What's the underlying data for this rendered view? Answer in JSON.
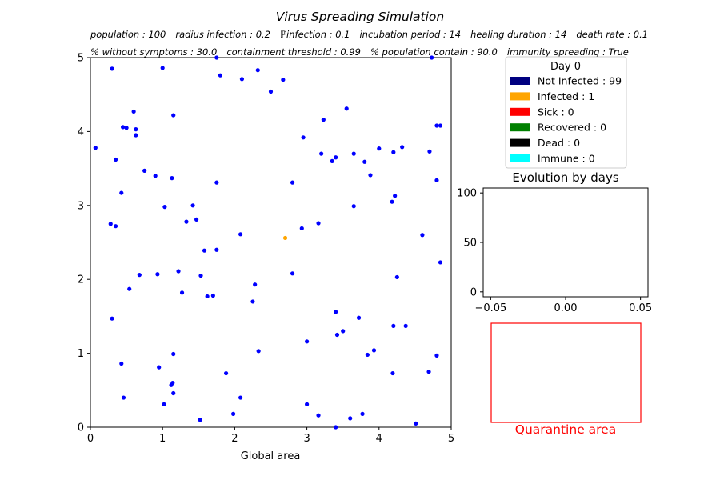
{
  "title": "Virus Spreading Simulation",
  "params_line1": [
    {
      "label": "population",
      "value": "100"
    },
    {
      "label": "radius infection",
      "value": "0.2"
    },
    {
      "label": "ℙinfection",
      "value": "0.1"
    },
    {
      "label": "incubation period",
      "value": "14"
    },
    {
      "label": "healing duration",
      "value": "14"
    },
    {
      "label": "death rate",
      "value": "0.1"
    }
  ],
  "params_line2": [
    {
      "label": "% without symptoms",
      "value": "30.0"
    },
    {
      "label": "containment threshold",
      "value": "0.99"
    },
    {
      "label": "% population contain",
      "value": "90.0"
    },
    {
      "label": "immunity spreading",
      "value": "True"
    }
  ],
  "colors": {
    "not_infected": "#0000ff",
    "infected": "#ffa500",
    "sick": "#ff0000",
    "recovered": "#008000",
    "dead": "#000000",
    "immune": "#00ffff",
    "legend_not_infected": "#000080",
    "quarantine": "#ff0000"
  },
  "chart_data": [
    {
      "type": "scatter",
      "xlabel": "Global area",
      "xlim": [
        0,
        5
      ],
      "ylim": [
        0,
        5
      ],
      "x_ticks": [
        "0",
        "1",
        "2",
        "3",
        "4",
        "5"
      ],
      "y_ticks": [
        "0",
        "1",
        "2",
        "3",
        "4",
        "5"
      ],
      "series": [
        {
          "name": "Not Infected",
          "points": [
            [
              0.3,
              4.85
            ],
            [
              1.0,
              4.86
            ],
            [
              1.75,
              5.0
            ],
            [
              1.8,
              4.76
            ],
            [
              2.1,
              4.71
            ],
            [
              2.32,
              4.83
            ],
            [
              2.5,
              4.54
            ],
            [
              2.67,
              4.7
            ],
            [
              4.73,
              5.0
            ],
            [
              0.07,
              3.78
            ],
            [
              0.35,
              3.62
            ],
            [
              0.6,
              4.27
            ],
            [
              0.45,
              4.06
            ],
            [
              0.5,
              4.05
            ],
            [
              0.63,
              4.03
            ],
            [
              0.63,
              3.95
            ],
            [
              1.15,
              4.22
            ],
            [
              3.55,
              4.31
            ],
            [
              3.23,
              4.16
            ],
            [
              2.95,
              3.92
            ],
            [
              3.2,
              3.7
            ],
            [
              3.4,
              3.65
            ],
            [
              3.35,
              3.6
            ],
            [
              3.65,
              3.7
            ],
            [
              3.8,
              3.59
            ],
            [
              4.0,
              3.77
            ],
            [
              4.2,
              3.72
            ],
            [
              4.32,
              3.79
            ],
            [
              4.7,
              3.73
            ],
            [
              4.8,
              4.08
            ],
            [
              4.85,
              4.08
            ],
            [
              0.75,
              3.47
            ],
            [
              0.9,
              3.4
            ],
            [
              1.13,
              3.37
            ],
            [
              1.75,
              3.31
            ],
            [
              2.8,
              3.31
            ],
            [
              3.88,
              3.41
            ],
            [
              4.8,
              3.34
            ],
            [
              0.43,
              3.17
            ],
            [
              0.28,
              2.75
            ],
            [
              0.35,
              2.72
            ],
            [
              1.03,
              2.98
            ],
            [
              1.42,
              3.0
            ],
            [
              1.47,
              2.81
            ],
            [
              1.33,
              2.78
            ],
            [
              2.08,
              2.61
            ],
            [
              2.93,
              2.69
            ],
            [
              3.16,
              2.76
            ],
            [
              3.65,
              2.99
            ],
            [
              4.18,
              3.05
            ],
            [
              4.22,
              3.13
            ],
            [
              4.6,
              2.6
            ],
            [
              4.85,
              2.23
            ],
            [
              1.58,
              2.39
            ],
            [
              1.75,
              2.4
            ],
            [
              0.68,
              2.06
            ],
            [
              0.93,
              2.07
            ],
            [
              1.22,
              2.11
            ],
            [
              1.53,
              2.05
            ],
            [
              0.54,
              1.87
            ],
            [
              1.27,
              1.82
            ],
            [
              1.62,
              1.77
            ],
            [
              1.7,
              1.78
            ],
            [
              2.28,
              1.93
            ],
            [
              2.25,
              1.7
            ],
            [
              2.8,
              2.08
            ],
            [
              4.25,
              2.03
            ],
            [
              0.3,
              1.47
            ],
            [
              3.4,
              1.56
            ],
            [
              3.72,
              1.48
            ],
            [
              3.5,
              1.3
            ],
            [
              3.42,
              1.25
            ],
            [
              4.2,
              1.37
            ],
            [
              4.37,
              1.37
            ],
            [
              1.15,
              0.99
            ],
            [
              2.33,
              1.03
            ],
            [
              3.0,
              1.16
            ],
            [
              3.84,
              0.98
            ],
            [
              3.93,
              1.04
            ],
            [
              4.8,
              0.97
            ],
            [
              0.43,
              0.86
            ],
            [
              0.95,
              0.81
            ],
            [
              1.88,
              0.73
            ],
            [
              4.19,
              0.73
            ],
            [
              4.69,
              0.75
            ],
            [
              1.12,
              0.57
            ],
            [
              1.14,
              0.6
            ],
            [
              1.15,
              0.46
            ],
            [
              0.46,
              0.4
            ],
            [
              2.08,
              0.4
            ],
            [
              1.02,
              0.31
            ],
            [
              3.0,
              0.31
            ],
            [
              1.52,
              0.1
            ],
            [
              1.98,
              0.18
            ],
            [
              3.16,
              0.16
            ],
            [
              3.6,
              0.12
            ],
            [
              3.77,
              0.18
            ],
            [
              3.4,
              0.0
            ],
            [
              4.51,
              0.05
            ]
          ]
        },
        {
          "name": "Infected",
          "points": [
            [
              2.7,
              2.56
            ]
          ]
        }
      ]
    },
    {
      "type": "line",
      "title": "Evolution by days",
      "xlim": [
        -0.055,
        0.055
      ],
      "ylim": [
        -5,
        105
      ],
      "x_ticks": [
        {
          "v": -0.05,
          "label": "−0.05"
        },
        {
          "v": 0.0,
          "label": "0.00"
        },
        {
          "v": 0.05,
          "label": "0.05"
        }
      ],
      "y_ticks": [
        {
          "v": 0,
          "label": "0"
        },
        {
          "v": 50,
          "label": "50"
        },
        {
          "v": 100,
          "label": "100"
        }
      ],
      "series": []
    }
  ],
  "legend": {
    "title": "Day 0",
    "entries": [
      {
        "label": "Not Infected : 99",
        "color_key": "legend_not_infected"
      },
      {
        "label": "Infected : 1",
        "color_key": "infected"
      },
      {
        "label": "Sick : 0",
        "color_key": "sick"
      },
      {
        "label": "Recovered : 0",
        "color_key": "recovered"
      },
      {
        "label": "Dead : 0",
        "color_key": "dead"
      },
      {
        "label": "Immune : 0",
        "color_key": "immune"
      }
    ]
  },
  "quarantine_label": "Quarantine area"
}
